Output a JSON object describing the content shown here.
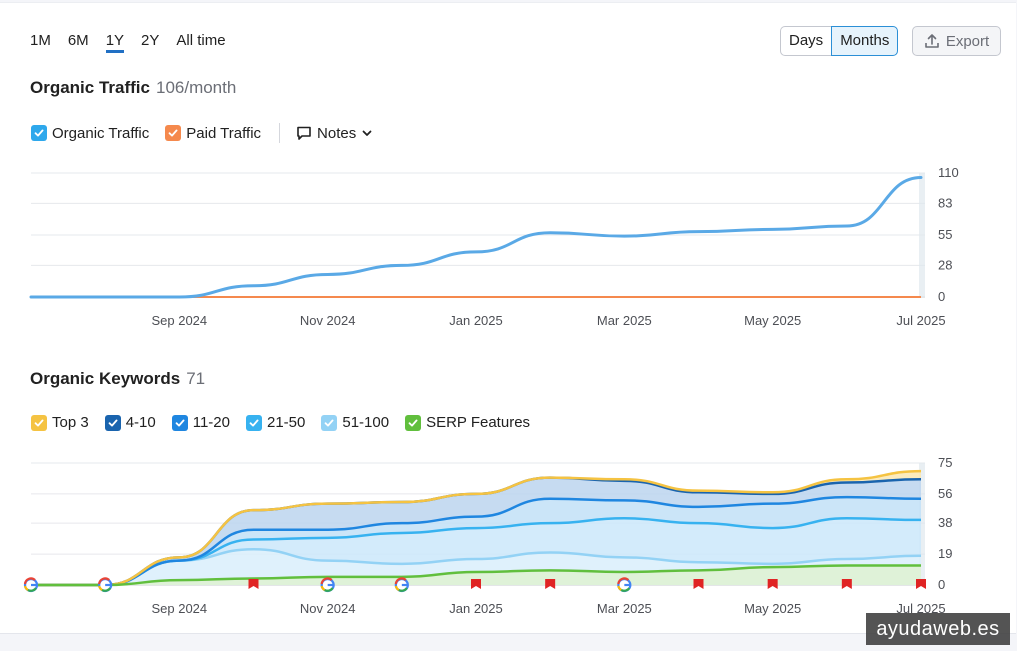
{
  "range_tabs": [
    {
      "label": "1M",
      "active": false
    },
    {
      "label": "6M",
      "active": false
    },
    {
      "label": "1Y",
      "active": true
    },
    {
      "label": "2Y",
      "active": false
    },
    {
      "label": "All time",
      "active": false
    }
  ],
  "granularity": {
    "days_label": "Days",
    "months_label": "Months",
    "selected": "Months"
  },
  "export_label": "Export",
  "traffic": {
    "title": "Organic Traffic",
    "count": "106/month",
    "legend": [
      {
        "label": "Organic Traffic",
        "color": "#2ea8ec",
        "checked": true
      },
      {
        "label": "Paid Traffic",
        "color": "#f5894d",
        "checked": true
      }
    ],
    "notes_label": "Notes"
  },
  "keywords": {
    "title": "Organic Keywords",
    "count": "71",
    "legend": [
      {
        "label": "Top 3",
        "color": "#f5c342",
        "checked": true
      },
      {
        "label": "4-10",
        "color": "#1a64ae",
        "checked": true
      },
      {
        "label": "11-20",
        "color": "#1f86e0",
        "checked": true
      },
      {
        "label": "21-50",
        "color": "#37b2f0",
        "checked": true
      },
      {
        "label": "51-100",
        "color": "#93d2f5",
        "checked": true
      },
      {
        "label": "SERP Features",
        "color": "#61bf3d",
        "checked": true
      }
    ]
  },
  "x_ticks": [
    "Sep 2024",
    "Nov 2024",
    "Jan 2025",
    "Mar 2025",
    "May 2025",
    "Jul 2025"
  ],
  "chart_data": [
    {
      "type": "line",
      "title": "Organic Traffic",
      "x": [
        "Jul 2024",
        "Aug 2024",
        "Sep 2024",
        "Oct 2024",
        "Nov 2024",
        "Dec 2024",
        "Jan 2025",
        "Feb 2025",
        "Mar 2025",
        "Apr 2025",
        "May 2025",
        "Jun 2025",
        "Jul 2025"
      ],
      "series": [
        {
          "name": "Organic Traffic",
          "color": "#5aa9e6",
          "values": [
            0,
            0,
            0,
            10,
            20,
            28,
            40,
            57,
            54,
            58,
            60,
            63,
            106
          ]
        },
        {
          "name": "Paid Traffic",
          "color": "#f5894d",
          "values": [
            0,
            0,
            0,
            0,
            0,
            0,
            0,
            0,
            0,
            0,
            0,
            0,
            0
          ]
        }
      ],
      "yticks": [
        0,
        28,
        55,
        83,
        110
      ],
      "ylim": [
        0,
        110
      ],
      "grid": true
    },
    {
      "type": "area",
      "title": "Organic Keywords",
      "x": [
        "Jul 2024",
        "Aug 2024",
        "Sep 2024",
        "Oct 2024",
        "Nov 2024",
        "Dec 2024",
        "Jan 2025",
        "Feb 2025",
        "Mar 2025",
        "Apr 2025",
        "May 2025",
        "Jun 2025",
        "Jul 2025"
      ],
      "stacked": true,
      "series": [
        {
          "name": "51-100",
          "color": "#93d2f5",
          "values": [
            0,
            0,
            15,
            22,
            15,
            13,
            16,
            20,
            17,
            14,
            13,
            16,
            18
          ]
        },
        {
          "name": "21-50",
          "color": "#37b2f0",
          "values": [
            0,
            0,
            0,
            6,
            14,
            19,
            19,
            18,
            24,
            24,
            22,
            25,
            22
          ]
        },
        {
          "name": "11-20",
          "color": "#1f86e0",
          "values": [
            0,
            0,
            0,
            6,
            5,
            6,
            7,
            15,
            11,
            10,
            15,
            13,
            13
          ]
        },
        {
          "name": "4-10",
          "color": "#1a64ae",
          "values": [
            0,
            0,
            2,
            12,
            16,
            13,
            14,
            13,
            12,
            9,
            6,
            9,
            12
          ]
        },
        {
          "name": "Top 3",
          "color": "#f5c342",
          "values": [
            0,
            0,
            0,
            0,
            0,
            0,
            0,
            0,
            1,
            1,
            1,
            2,
            5
          ]
        },
        {
          "name": "SERP Features",
          "color": "#61bf3d",
          "values": [
            0,
            0,
            3,
            4,
            5,
            5,
            8,
            9,
            8,
            9,
            11,
            12,
            12
          ],
          "overlay": true
        }
      ],
      "yticks": [
        0,
        19,
        38,
        56,
        75
      ],
      "ylim": [
        0,
        75
      ],
      "grid": true,
      "markers": [
        {
          "kind": "google-update",
          "x": "Jul 2024"
        },
        {
          "kind": "google-update",
          "x": "Aug 2024"
        },
        {
          "kind": "note-flag",
          "x": "Oct 2024"
        },
        {
          "kind": "google-update",
          "x": "Nov 2024"
        },
        {
          "kind": "google-update",
          "x": "Dec 2024"
        },
        {
          "kind": "note-flag",
          "x": "Jan 2025"
        },
        {
          "kind": "note-flag",
          "x": "Feb 2025"
        },
        {
          "kind": "google-update",
          "x": "Mar 2025"
        },
        {
          "kind": "note-flag",
          "x": "Apr 2025"
        },
        {
          "kind": "note-flag",
          "x": "May 2025"
        },
        {
          "kind": "note-flag",
          "x": "Jun 2025"
        },
        {
          "kind": "note-flag",
          "x": "Jul 2025"
        }
      ]
    }
  ],
  "watermark": "ayudaweb.es"
}
